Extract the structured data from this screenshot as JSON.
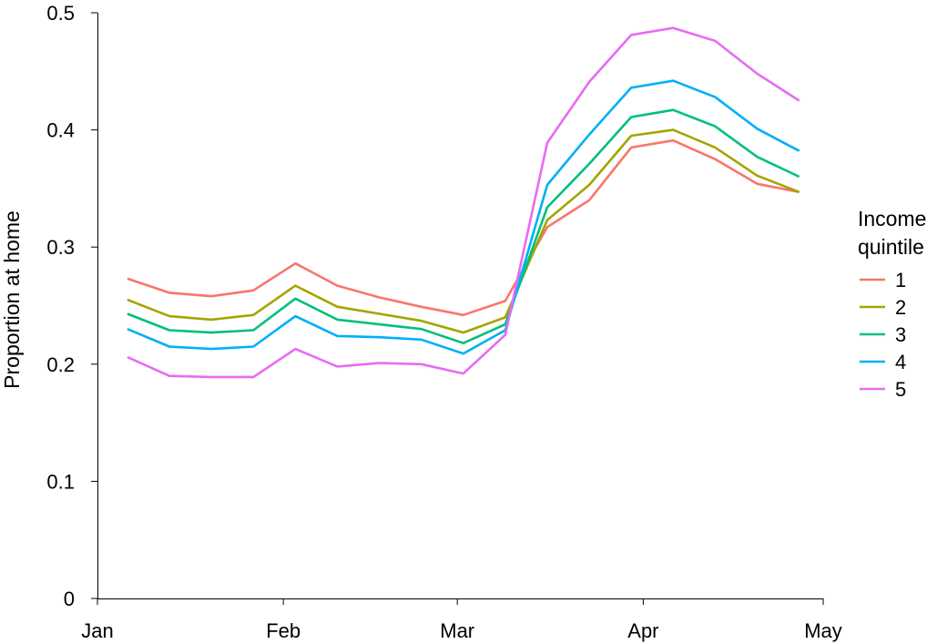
{
  "chart_data": {
    "type": "line",
    "title": "",
    "xlabel": "",
    "ylabel": "Proportion at home",
    "ylim": [
      0,
      0.5
    ],
    "yticks": [
      0,
      0.1,
      0.2,
      0.3,
      0.4,
      0.5
    ],
    "ytick_labels": [
      "0",
      "0.1",
      "0.2",
      "0.3",
      "0.4",
      "0.5"
    ],
    "xlim": [
      "2020-01-01",
      "2020-05-01"
    ],
    "xticks": [
      "2020-01-01",
      "2020-02-01",
      "2020-03-01",
      "2020-04-01",
      "2020-05-01"
    ],
    "xtick_labels": [
      "Jan",
      "Feb",
      "Mar",
      "Apr",
      "May"
    ],
    "grid": false,
    "legend": {
      "title": "Income quintile",
      "title_lines": [
        "Income",
        "quintile"
      ],
      "position": "right"
    },
    "x": [
      "2020-01-06",
      "2020-01-13",
      "2020-01-20",
      "2020-01-27",
      "2020-02-03",
      "2020-02-10",
      "2020-02-17",
      "2020-02-24",
      "2020-03-02",
      "2020-03-09",
      "2020-03-16",
      "2020-03-23",
      "2020-03-30",
      "2020-04-06",
      "2020-04-13",
      "2020-04-20",
      "2020-04-27"
    ],
    "series": [
      {
        "name": "1",
        "color": "#F8766D",
        "values": [
          0.273,
          0.261,
          0.258,
          0.263,
          0.286,
          0.267,
          0.257,
          0.249,
          0.242,
          0.254,
          0.317,
          0.34,
          0.385,
          0.391,
          0.375,
          0.354,
          0.347
        ]
      },
      {
        "name": "2",
        "color": "#A3A500",
        "values": [
          0.255,
          0.241,
          0.238,
          0.242,
          0.267,
          0.249,
          0.243,
          0.237,
          0.227,
          0.24,
          0.323,
          0.353,
          0.395,
          0.4,
          0.385,
          0.361,
          0.347
        ]
      },
      {
        "name": "3",
        "color": "#00BF7D",
        "values": [
          0.243,
          0.229,
          0.227,
          0.229,
          0.256,
          0.238,
          0.234,
          0.23,
          0.218,
          0.234,
          0.334,
          0.371,
          0.411,
          0.417,
          0.403,
          0.377,
          0.36
        ]
      },
      {
        "name": "4",
        "color": "#00B0F6",
        "values": [
          0.23,
          0.215,
          0.213,
          0.215,
          0.241,
          0.224,
          0.223,
          0.221,
          0.209,
          0.229,
          0.353,
          0.396,
          0.436,
          0.442,
          0.428,
          0.401,
          0.382
        ]
      },
      {
        "name": "5",
        "color": "#E76BF3",
        "values": [
          0.206,
          0.19,
          0.189,
          0.189,
          0.213,
          0.198,
          0.201,
          0.2,
          0.192,
          0.225,
          0.389,
          0.441,
          0.481,
          0.487,
          0.476,
          0.448,
          0.425
        ]
      }
    ]
  }
}
